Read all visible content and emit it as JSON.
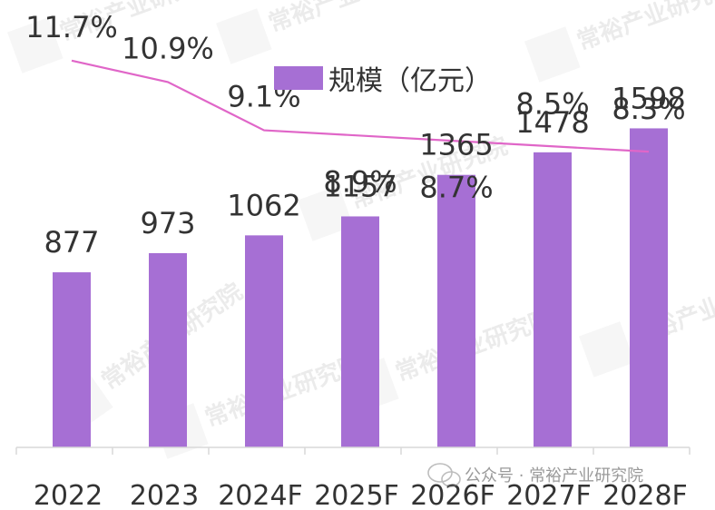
{
  "chart_data": {
    "type": "bar",
    "categories": [
      "2022",
      "2023",
      "2024F",
      "2025F",
      "2026F",
      "2027F",
      "2028F"
    ],
    "series": [
      {
        "name": "规模（亿元）",
        "type": "bar",
        "values": [
          877,
          973,
          1062,
          1157,
          1365,
          1478,
          1598
        ],
        "labels": [
          "877",
          "973",
          "1062",
          "1157",
          "1365",
          "1478",
          "1598"
        ]
      },
      {
        "type": "line",
        "values": [
          11.7,
          10.9,
          9.1,
          8.9,
          8.7,
          8.5,
          8.3
        ],
        "labels": [
          "11.7%",
          "10.9%",
          "9.1%",
          "8.9%",
          "8.7%",
          "8.5%",
          "8.3%"
        ]
      }
    ],
    "legend": "top-center",
    "grid": false
  },
  "watermark": {
    "text": "常裕产业研究院",
    "footer_text": "公众号 · 常裕产业研究院"
  },
  "colors": {
    "bar": "#a66fd4",
    "line": "#e066c8",
    "text": "#333333",
    "axis": "#d9d9d9",
    "watermark": "#c8c8c8"
  }
}
